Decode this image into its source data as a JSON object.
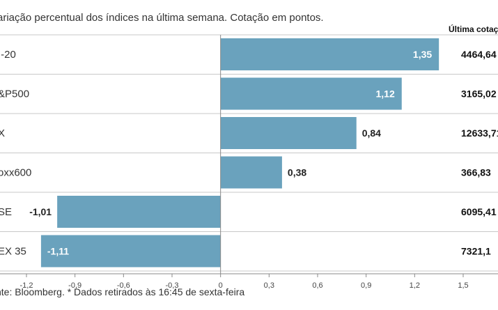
{
  "chart_data": {
    "type": "bar",
    "orientation": "horizontal",
    "subtitle": "ariação percentual dos índices na última semana. Cotação em pontos.",
    "column_header": "Última cotaç",
    "categories": [
      "I-20",
      "&P500",
      "X",
      "oxx600",
      "SE",
      "EX 35"
    ],
    "values": [
      1.35,
      1.12,
      0.84,
      0.38,
      -1.01,
      -1.11
    ],
    "value_labels": [
      "1,35",
      "1,12",
      "0,84",
      "0,38",
      "-1,01",
      "-1,11"
    ],
    "last_quote": [
      "4464,64",
      "3165,02",
      "12633,71",
      "366,83",
      "6095,41",
      "7321,1"
    ],
    "xlim": [
      -1.2,
      1.5
    ],
    "xticks": [
      -1.2,
      -0.9,
      -0.6,
      -0.3,
      0,
      0.3,
      0.6,
      0.9,
      1.2,
      1.5
    ],
    "xtick_labels": [
      "-1,2",
      "-0,9",
      "-0,6",
      "-0,3",
      "0",
      "0,3",
      "0,6",
      "0,9",
      "1,2",
      "1,5"
    ],
    "source": "nte: Bloomberg.  * Dados retirados às 16:45 de sexta-feira"
  },
  "colors": {
    "bar": "#6aa2bd",
    "label_inside": "#ffffff",
    "label_outside": "#222222",
    "grid": "#c8c8c8",
    "axis": "#888888"
  }
}
